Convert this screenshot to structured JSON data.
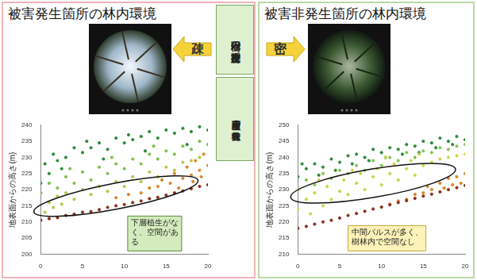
{
  "chart_data": [
    {
      "type": "scatter",
      "title": "被害発生箇所の林内環境",
      "y_label": "地表面からの高さ(m)",
      "xlim": [
        0,
        20
      ],
      "xticks": [
        0,
        5,
        10,
        15,
        20
      ],
      "ylim": [
        200,
        240
      ],
      "yticks": [
        200,
        205,
        210,
        215,
        220,
        225,
        230,
        235,
        240
      ],
      "grid": false,
      "annotation": "下層植生がなく、空間がある",
      "series": [
        {
          "color": "#8b2e1c",
          "x": [
            0,
            1,
            2,
            3,
            4,
            5,
            6,
            7,
            8,
            9,
            10,
            11,
            12,
            13,
            14,
            15,
            16,
            17,
            18,
            19,
            20
          ],
          "values": [
            210.5,
            211,
            211.3,
            212,
            212.4,
            213,
            213.2,
            213.8,
            214.5,
            215,
            215.4,
            216,
            216.5,
            217.2,
            217.6,
            218.3,
            219,
            219.6,
            220.3,
            221,
            221.5
          ]
        },
        {
          "color": "#d9862b",
          "x": [
            9,
            10.5,
            12,
            13,
            14,
            14.5,
            15.5,
            16,
            17,
            17.5,
            18,
            18.5,
            19,
            19.5,
            20,
            16.5,
            18.2,
            19.2
          ],
          "values": [
            217.5,
            218.5,
            219,
            220.5,
            221,
            223,
            222,
            225,
            223.5,
            227,
            224.5,
            229,
            226,
            231,
            227.5,
            220.5,
            222.5,
            224
          ]
        },
        {
          "color": "#b4c848",
          "x": [
            0.5,
            1,
            1.5,
            2,
            2.5,
            3,
            4,
            5,
            6,
            7,
            8,
            9,
            10,
            11,
            12,
            13,
            14,
            15,
            16,
            17,
            18,
            19
          ],
          "values": [
            213,
            216,
            214.5,
            218,
            215.5,
            219,
            217,
            220,
            218.5,
            221,
            219.5,
            222.5,
            221,
            224,
            222.5,
            225.5,
            224,
            227,
            226,
            228.5,
            229,
            230
          ]
        },
        {
          "color": "#7fbf4d",
          "x": [
            0,
            1,
            2,
            3,
            4,
            5,
            6,
            7,
            8,
            9,
            10,
            11,
            12,
            13,
            14,
            15,
            16,
            17,
            18,
            19,
            20,
            3.5,
            8.5,
            13.5
          ],
          "values": [
            219,
            222,
            220.5,
            224,
            222,
            225.5,
            223,
            227,
            225,
            228,
            226.5,
            229.5,
            228,
            231,
            229.5,
            232,
            231,
            233.5,
            232.5,
            235,
            234,
            226.5,
            230,
            233.5
          ]
        },
        {
          "color": "#2e8a3c",
          "x": [
            0,
            0.5,
            1,
            1.5,
            2,
            3,
            4,
            5,
            5.5,
            6,
            7,
            8,
            9,
            10,
            10.5,
            11,
            12,
            13,
            14,
            15,
            16,
            17,
            18,
            19,
            20,
            2.5,
            7.5,
            12.5,
            17.5
          ],
          "values": [
            222,
            228,
            225,
            231,
            229,
            230,
            233,
            231.5,
            235,
            233,
            234.5,
            232.5,
            236,
            234.5,
            237,
            235.5,
            236.5,
            238,
            236,
            238.5,
            237.5,
            239,
            238,
            239.5,
            238.5,
            226.5,
            229.5,
            232,
            234
          ]
        }
      ]
    },
    {
      "type": "scatter",
      "title": "被害非発生箇所の林内環境",
      "y_label": "地表面からの高さ(m)",
      "xlim": [
        0,
        20
      ],
      "xticks": [
        0,
        5,
        10,
        15,
        20
      ],
      "ylim": [
        210,
        250
      ],
      "yticks": [
        210,
        215,
        220,
        225,
        230,
        235,
        240,
        245,
        250
      ],
      "grid": false,
      "annotation": "中間パルスが多く、樹林内で空間なし",
      "series": [
        {
          "color": "#8b2e1c",
          "x": [
            0,
            1,
            2,
            3,
            4,
            5,
            6,
            7,
            8,
            9,
            10,
            11,
            12,
            13,
            14,
            15,
            16,
            17,
            18,
            19,
            20
          ],
          "values": [
            218,
            218.6,
            219.3,
            220,
            220.5,
            221.2,
            222,
            222.6,
            223.3,
            224,
            224.6,
            225.3,
            226,
            226.6,
            227.3,
            228,
            228.6,
            229.3,
            230,
            230.6,
            231.3
          ]
        },
        {
          "color": "#d9862b",
          "x": [
            11,
            12,
            13,
            14,
            15,
            15.5,
            16,
            17,
            17.5,
            18,
            18.5,
            19,
            19.5,
            20
          ],
          "values": [
            225.5,
            226.5,
            227,
            228.5,
            229,
            231,
            230,
            232,
            230.5,
            233.5,
            231.5,
            234,
            232,
            235
          ]
        },
        {
          "color": "#c9d64a",
          "x": [
            0,
            1,
            1.5,
            2,
            3,
            3.5,
            4,
            5,
            5.5,
            6,
            7,
            7.5,
            8,
            9,
            9.5,
            10,
            11,
            11.5,
            12,
            13,
            13.5,
            14,
            15,
            16,
            17,
            18,
            19,
            20,
            2.5,
            6.5,
            10.5,
            14.5
          ],
          "values": [
            224,
            227,
            222.5,
            229,
            225,
            231,
            227,
            229.5,
            233,
            228.5,
            232,
            235,
            230,
            234,
            236.5,
            231.5,
            235,
            238,
            233,
            236.5,
            239,
            234.5,
            237.5,
            238.5,
            239.5,
            240,
            240.5,
            241,
            233,
            236,
            240,
            241
          ]
        },
        {
          "color": "#86c453",
          "x": [
            0,
            1,
            2,
            3,
            4,
            5,
            6,
            7,
            8,
            9,
            10,
            11,
            12,
            13,
            14,
            15,
            16,
            17,
            18,
            19,
            20
          ],
          "values": [
            230,
            233,
            231.5,
            235,
            233.5,
            236,
            235,
            237.5,
            236,
            239,
            237.5,
            240,
            239,
            241.5,
            240,
            242,
            241.5,
            243,
            242.5,
            243.5,
            244
          ]
        },
        {
          "color": "#2e8a3c",
          "x": [
            0,
            1,
            2,
            3,
            4,
            5,
            6,
            7,
            8,
            9,
            10,
            11,
            12,
            13,
            14,
            15,
            16,
            17,
            18,
            19,
            20,
            0.5,
            2.5,
            4.5,
            6.5,
            8.5,
            10.5,
            12.5,
            14.5,
            16.5,
            18.5
          ],
          "values": [
            234,
            236.5,
            238,
            237,
            239.5,
            238.5,
            240.5,
            241,
            240,
            242.5,
            241.5,
            243,
            242.5,
            244,
            243.5,
            245,
            244.5,
            246,
            245,
            246.5,
            245.5,
            238,
            234.5,
            236,
            238,
            239,
            240,
            241,
            241.5,
            243,
            244
          ]
        }
      ]
    }
  ],
  "photo_labels": [
    "疎",
    "密"
  ],
  "row_labels": [
    "樹冠の疎密程度",
    "下層植生の分布状況"
  ]
}
